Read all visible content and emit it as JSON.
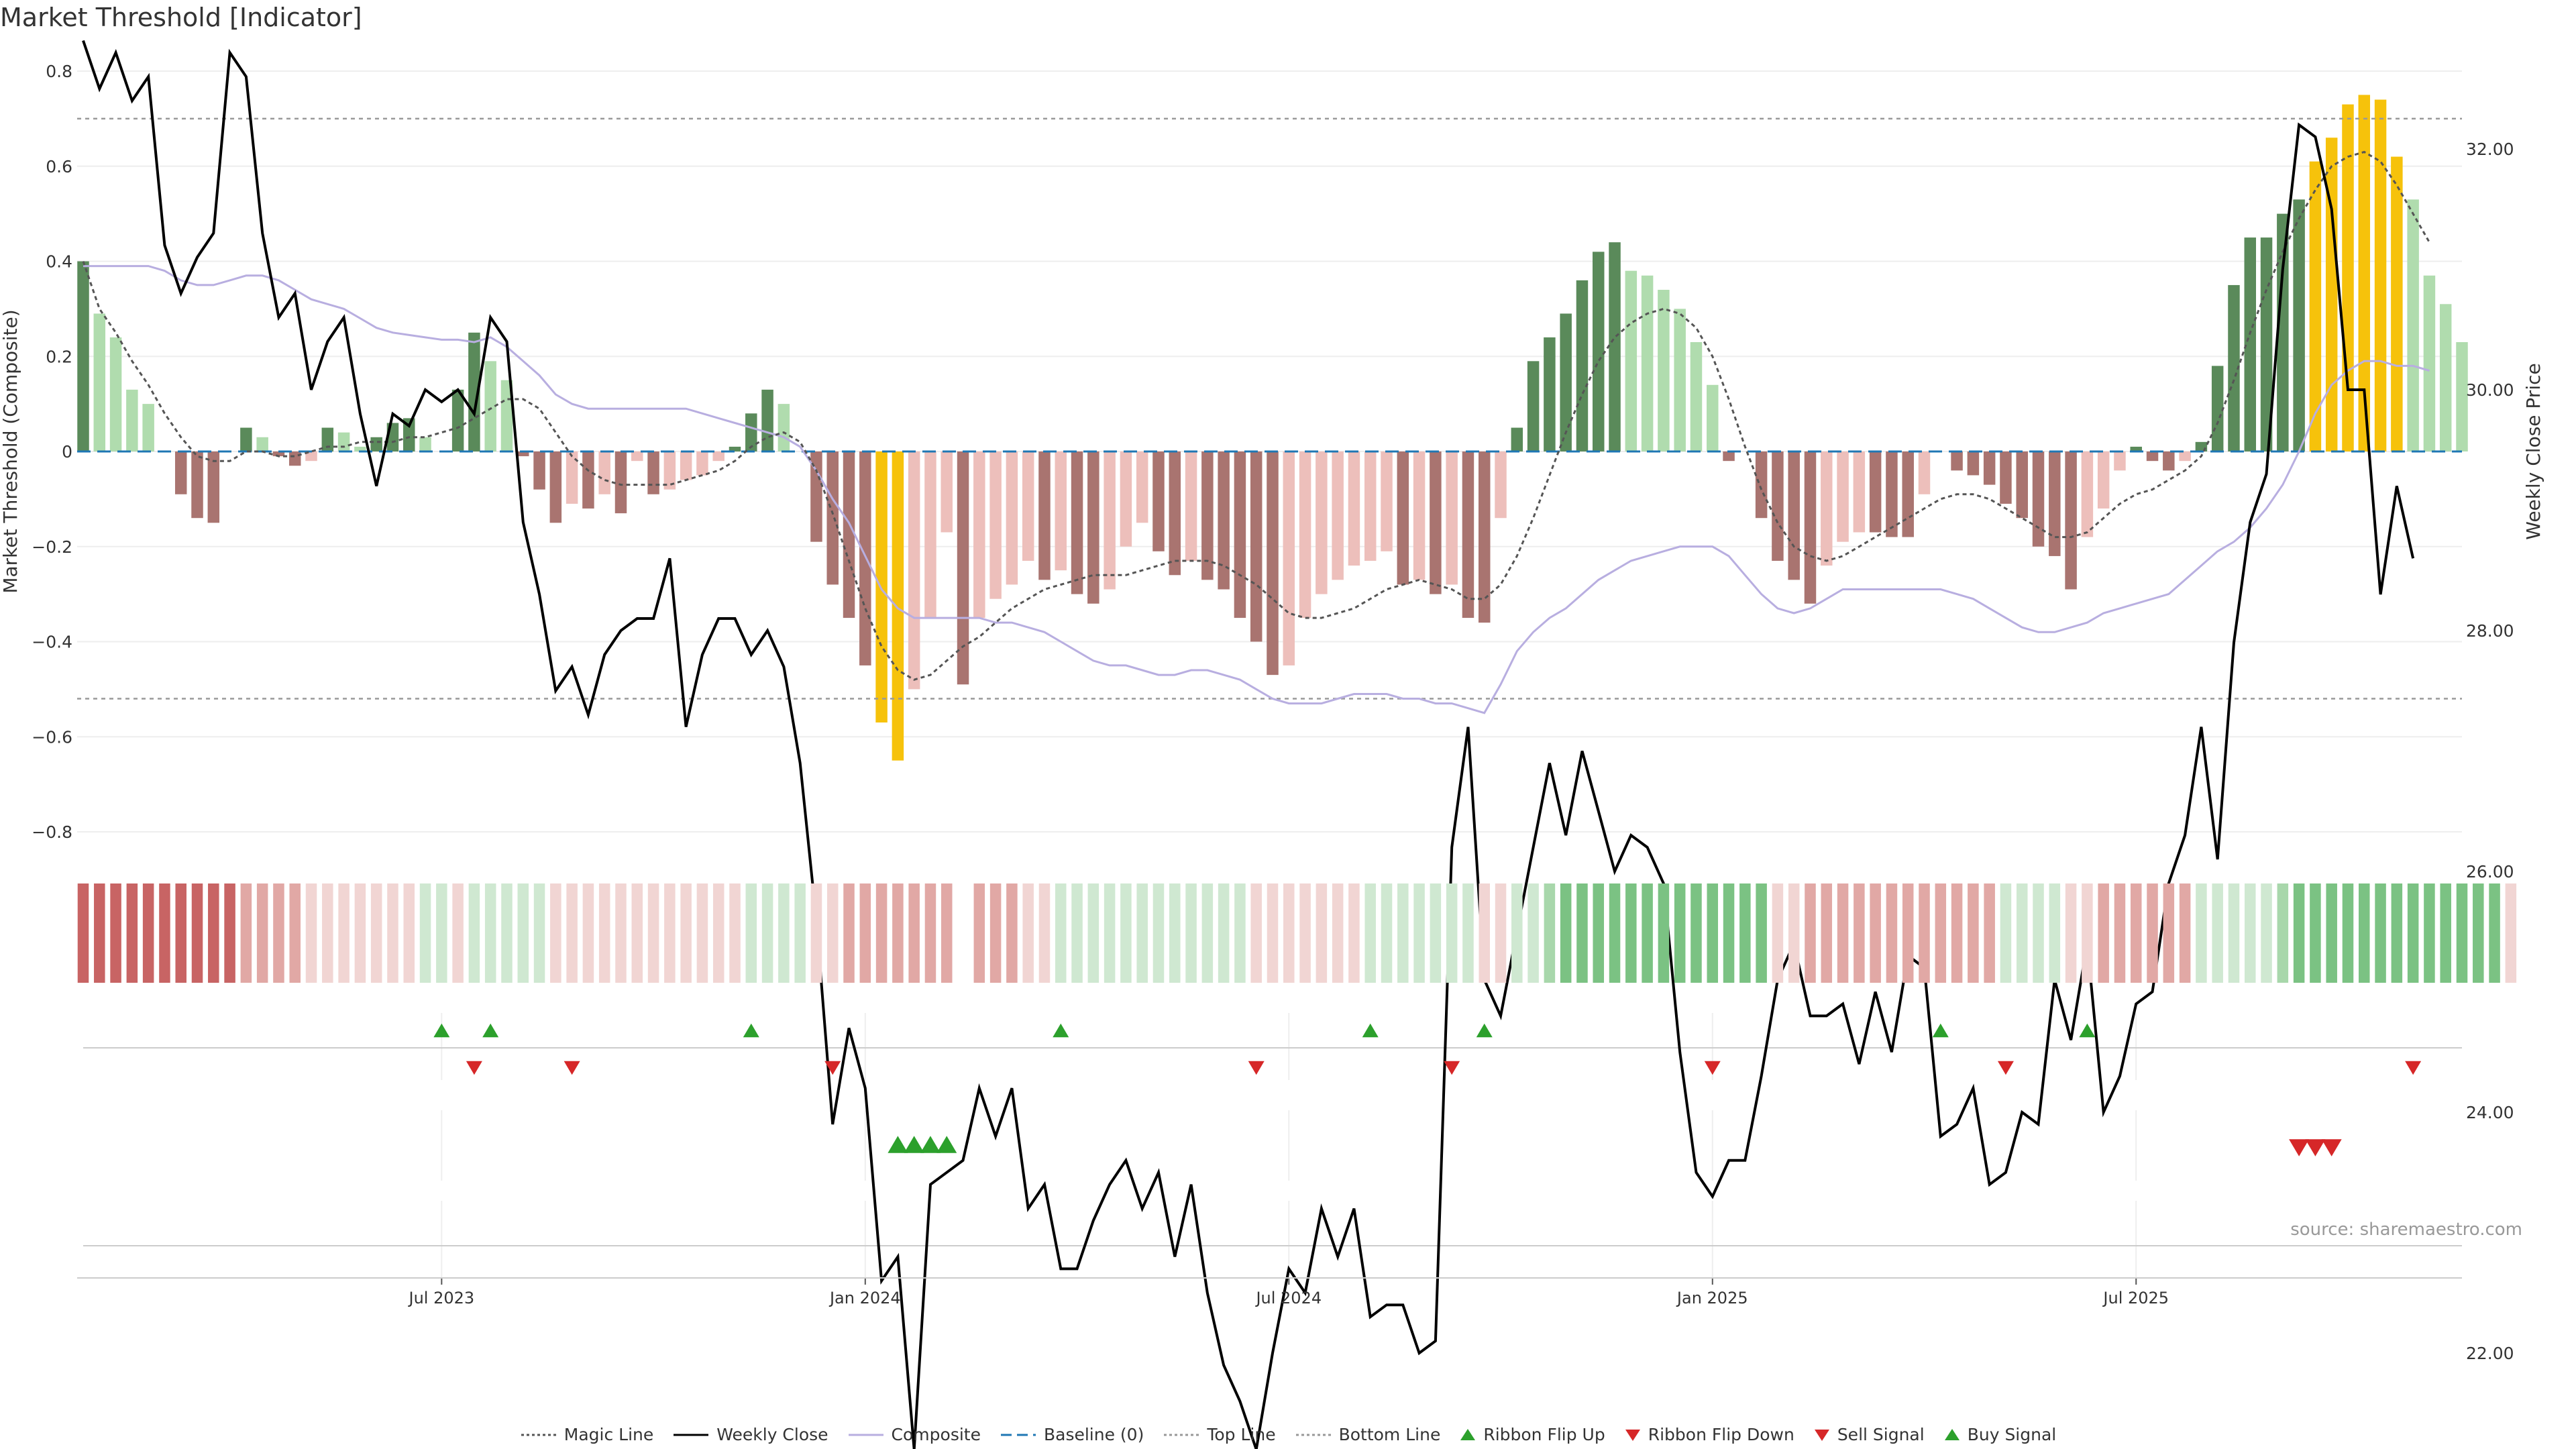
{
  "title": "Market Threshold [Indicator]",
  "source": "source: sharemaestro.com",
  "legend": [
    {
      "label": "Magic Line",
      "icon": "dotted-line",
      "color": "#555555"
    },
    {
      "label": "Weekly Close",
      "icon": "solid-line",
      "color": "#000000"
    },
    {
      "label": "Composite",
      "icon": "solid-line",
      "color": "#b8aee0"
    },
    {
      "label": "Baseline (0)",
      "icon": "dashed-line",
      "color": "#1f77b4"
    },
    {
      "label": "Top Line",
      "icon": "dotted-line",
      "color": "#999999"
    },
    {
      "label": "Bottom Line",
      "icon": "dotted-line",
      "color": "#999999"
    },
    {
      "label": "Ribbon Flip Up",
      "icon": "triangle-up",
      "color": "#2ca02c"
    },
    {
      "label": "Ribbon Flip Down",
      "icon": "triangle-down",
      "color": "#d62728"
    },
    {
      "label": "Sell Signal",
      "icon": "triangle-down",
      "color": "#d62728"
    },
    {
      "label": "Buy Signal",
      "icon": "triangle-up",
      "color": "#2ca02c"
    }
  ],
  "colors": {
    "bar_strong_pos": "#5a8a5a",
    "bar_weak_pos": "#b0dcae",
    "bar_strong_neg": "#a97470",
    "bar_weak_neg": "#edbfbb",
    "bar_extreme": "#f6c20b",
    "ribbon_red_strong": "#c86464",
    "ribbon_red_mid": "#e1a8a5",
    "ribbon_red_weak": "#f1d5d3",
    "ribbon_green_weak": "#cfe8d1",
    "ribbon_green_mid": "#a8d7ab",
    "ribbon_green_strong": "#7bc283"
  },
  "chart_data": {
    "type": "bar",
    "title": "Market Threshold [Indicator]",
    "ylabel_left": "Market Threshold (Composite)",
    "ylabel_right": "Weekly Close Price",
    "ylim_left": [
      -0.8,
      0.8
    ],
    "ylim_right": [
      21.0,
      33.5
    ],
    "left_ticks": [
      "0.8",
      "0.6",
      "0.4",
      "0.2",
      "0",
      "−0.2",
      "−0.4",
      "−0.6",
      "−0.8"
    ],
    "right_ticks": [
      "32.00",
      "30.00",
      "28.00",
      "26.00",
      "24.00",
      "22.00"
    ],
    "x_tick_labels": [
      "Jul 2023",
      "Jan 2024",
      "Jul 2024",
      "Jan 2025",
      "Jul 2025"
    ],
    "x_tick_weeks": [
      22,
      48,
      74,
      100,
      126
    ],
    "top_line": 0.7,
    "bottom_line": -0.52,
    "composite_bars": [
      0.4,
      0.29,
      0.24,
      0.13,
      0.1,
      0,
      -0.09,
      -0.14,
      -0.15,
      0,
      0.05,
      0.03,
      -0.01,
      -0.03,
      -0.02,
      0.05,
      0.04,
      0.01,
      0.03,
      0.06,
      0.07,
      0.03,
      0,
      0.13,
      0.25,
      0.19,
      0.15,
      -0.01,
      -0.08,
      -0.15,
      -0.11,
      -0.12,
      -0.09,
      -0.13,
      -0.02,
      -0.09,
      -0.08,
      -0.06,
      -0.05,
      -0.02,
      0.01,
      0.08,
      0.13,
      0.1,
      0,
      -0.19,
      -0.28,
      -0.35,
      -0.45,
      -0.57,
      -0.65,
      -0.5,
      -0.35,
      -0.17,
      -0.49,
      -0.35,
      -0.31,
      -0.28,
      -0.23,
      -0.27,
      -0.25,
      -0.3,
      -0.32,
      -0.29,
      -0.2,
      -0.15,
      -0.21,
      -0.26,
      -0.23,
      -0.27,
      -0.29,
      -0.35,
      -0.4,
      -0.47,
      -0.45,
      -0.35,
      -0.3,
      -0.27,
      -0.24,
      -0.23,
      -0.21,
      -0.28,
      -0.27,
      -0.3,
      -0.28,
      -0.35,
      -0.36,
      -0.14,
      0.05,
      0.19,
      0.24,
      0.29,
      0.36,
      0.42,
      0.44,
      0.38,
      0.37,
      0.34,
      0.3,
      0.23,
      0.14,
      -0.02,
      0,
      -0.14,
      -0.23,
      -0.27,
      -0.32,
      -0.24,
      -0.19,
      -0.17,
      -0.17,
      -0.18,
      -0.18,
      -0.09,
      0,
      -0.04,
      -0.05,
      -0.07,
      -0.11,
      -0.14,
      -0.2,
      -0.22,
      -0.29,
      -0.18,
      -0.12,
      -0.04,
      0.01,
      -0.02,
      -0.04,
      -0.02,
      0.02,
      0.18,
      0.35,
      0.45,
      0.45,
      0.5,
      0.53,
      0.61,
      0.66,
      0.73,
      0.75,
      0.74,
      0.62,
      0.53,
      0.37,
      0.31,
      0.23
    ],
    "weekly_close": [
      32.9,
      32.5,
      32.8,
      32.4,
      32.6,
      31.2,
      30.8,
      31.1,
      31.3,
      32.8,
      32.6,
      31.3,
      30.6,
      30.8,
      30.0,
      30.4,
      30.6,
      29.8,
      29.2,
      29.8,
      29.7,
      30.0,
      29.9,
      30.0,
      29.8,
      30.6,
      30.4,
      28.9,
      28.3,
      27.5,
      27.7,
      27.3,
      27.8,
      28.0,
      28.1,
      28.1,
      28.6,
      27.2,
      27.8,
      28.1,
      28.1,
      27.8,
      28.0,
      27.7,
      26.9,
      25.6,
      23.9,
      24.7,
      24.2,
      22.6,
      22.8,
      21.2,
      23.4,
      23.5,
      23.6,
      24.2,
      23.8,
      24.2,
      23.2,
      23.4,
      22.7,
      22.7,
      23.1,
      23.4,
      23.6,
      23.2,
      23.5,
      22.8,
      23.4,
      22.5,
      21.9,
      21.6,
      21.2,
      22.0,
      22.7,
      22.5,
      23.2,
      22.8,
      23.2,
      22.3,
      22.4,
      22.4,
      22.0,
      22.1,
      26.2,
      27.2,
      25.1,
      24.8,
      25.5,
      26.2,
      26.9,
      26.3,
      27.0,
      26.5,
      26.0,
      26.3,
      26.2,
      25.9,
      24.5,
      23.5,
      23.3,
      23.6,
      23.6,
      24.3,
      25.1,
      25.4,
      24.8,
      24.8,
      24.9,
      24.4,
      25.0,
      24.5,
      25.3,
      25.2,
      23.8,
      23.9,
      24.2,
      23.4,
      23.5,
      24.0,
      23.9,
      25.1,
      24.6,
      25.4,
      24.0,
      24.3,
      24.9,
      25.0,
      25.9,
      26.3,
      27.2,
      26.1,
      27.9,
      28.9,
      29.3,
      31.0,
      32.2,
      32.1,
      31.5,
      30.0,
      30.0,
      28.3,
      29.2,
      28.6
    ],
    "magic_line": [
      0.4,
      0.3,
      0.25,
      0.19,
      0.14,
      0.08,
      0.03,
      -0.01,
      -0.02,
      -0.02,
      0.0,
      0.0,
      -0.01,
      -0.01,
      0.0,
      0.01,
      0.01,
      0.02,
      0.02,
      0.02,
      0.03,
      0.03,
      0.04,
      0.05,
      0.07,
      0.09,
      0.11,
      0.11,
      0.09,
      0.04,
      -0.01,
      -0.04,
      -0.06,
      -0.07,
      -0.07,
      -0.07,
      -0.07,
      -0.06,
      -0.05,
      -0.04,
      -0.02,
      0.01,
      0.03,
      0.04,
      0.02,
      -0.04,
      -0.13,
      -0.23,
      -0.33,
      -0.41,
      -0.46,
      -0.48,
      -0.47,
      -0.44,
      -0.41,
      -0.39,
      -0.36,
      -0.33,
      -0.31,
      -0.29,
      -0.28,
      -0.27,
      -0.26,
      -0.26,
      -0.26,
      -0.25,
      -0.24,
      -0.23,
      -0.23,
      -0.23,
      -0.24,
      -0.26,
      -0.28,
      -0.31,
      -0.34,
      -0.35,
      -0.35,
      -0.34,
      -0.33,
      -0.31,
      -0.29,
      -0.28,
      -0.27,
      -0.28,
      -0.29,
      -0.31,
      -0.31,
      -0.28,
      -0.22,
      -0.14,
      -0.05,
      0.04,
      0.12,
      0.19,
      0.24,
      0.27,
      0.29,
      0.3,
      0.29,
      0.26,
      0.2,
      0.11,
      0.01,
      -0.08,
      -0.15,
      -0.2,
      -0.22,
      -0.23,
      -0.22,
      -0.2,
      -0.18,
      -0.16,
      -0.14,
      -0.12,
      -0.1,
      -0.09,
      -0.09,
      -0.1,
      -0.12,
      -0.14,
      -0.16,
      -0.18,
      -0.18,
      -0.17,
      -0.14,
      -0.11,
      -0.09,
      -0.08,
      -0.06,
      -0.04,
      -0.01,
      0.06,
      0.15,
      0.25,
      0.34,
      0.42,
      0.49,
      0.55,
      0.6,
      0.62,
      0.63,
      0.61,
      0.56,
      0.5,
      0.44
    ],
    "composite_line": [
      0.39,
      0.39,
      0.39,
      0.39,
      0.39,
      0.38,
      0.36,
      0.35,
      0.35,
      0.36,
      0.37,
      0.37,
      0.36,
      0.34,
      0.32,
      0.31,
      0.3,
      0.28,
      0.26,
      0.25,
      0.245,
      0.24,
      0.235,
      0.235,
      0.23,
      0.24,
      0.22,
      0.19,
      0.16,
      0.12,
      0.1,
      0.09,
      0.09,
      0.09,
      0.09,
      0.09,
      0.09,
      0.09,
      0.08,
      0.07,
      0.06,
      0.05,
      0.04,
      0.03,
      0.01,
      -0.04,
      -0.1,
      -0.15,
      -0.22,
      -0.29,
      -0.33,
      -0.35,
      -0.35,
      -0.35,
      -0.35,
      -0.35,
      -0.36,
      -0.36,
      -0.37,
      -0.38,
      -0.4,
      -0.42,
      -0.44,
      -0.45,
      -0.45,
      -0.46,
      -0.47,
      -0.47,
      -0.46,
      -0.46,
      -0.47,
      -0.48,
      -0.5,
      -0.52,
      -0.53,
      -0.53,
      -0.53,
      -0.52,
      -0.51,
      -0.51,
      -0.51,
      -0.52,
      -0.52,
      -0.53,
      -0.53,
      -0.54,
      -0.55,
      -0.49,
      -0.42,
      -0.38,
      -0.35,
      -0.33,
      -0.3,
      -0.27,
      -0.25,
      -0.23,
      -0.22,
      -0.21,
      -0.2,
      -0.2,
      -0.2,
      -0.22,
      -0.26,
      -0.3,
      -0.33,
      -0.34,
      -0.33,
      -0.31,
      -0.29,
      -0.29,
      -0.29,
      -0.29,
      -0.29,
      -0.29,
      -0.29,
      -0.3,
      -0.31,
      -0.33,
      -0.35,
      -0.37,
      -0.38,
      -0.38,
      -0.37,
      -0.36,
      -0.34,
      -0.33,
      -0.32,
      -0.31,
      -0.3,
      -0.27,
      -0.24,
      -0.21,
      -0.19,
      -0.16,
      -0.12,
      -0.07,
      0.0,
      0.08,
      0.14,
      0.17,
      0.19,
      0.19,
      0.18,
      0.18,
      0.17
    ],
    "ribbon_levels": [
      -3,
      -3,
      -3,
      -3,
      -3,
      -3,
      -3,
      -3,
      -3,
      -3,
      -2,
      -2,
      -2,
      -2,
      -1,
      -1,
      -1,
      -1,
      -1,
      -1,
      -1,
      1,
      1,
      -1,
      1,
      1,
      1,
      1,
      1,
      -1,
      -1,
      -1,
      -1,
      -1,
      -1,
      -1,
      -1,
      -1,
      -1,
      -1,
      -1,
      1,
      1,
      1,
      1,
      -1,
      -1,
      -2,
      -2,
      -2,
      -2,
      -2,
      -2,
      -2,
      null,
      -2,
      -2,
      -2,
      -1,
      -1,
      1,
      1,
      1,
      1,
      1,
      1,
      1,
      1,
      1,
      1,
      1,
      1,
      -1,
      -1,
      -1,
      -1,
      -1,
      -1,
      -1,
      1,
      1,
      1,
      1,
      1,
      1,
      1,
      -1,
      -1,
      1,
      1,
      2,
      2,
      2,
      2,
      2,
      2,
      2,
      2,
      2,
      2,
      2,
      2,
      2,
      2,
      -1,
      -1,
      -2,
      -2,
      -2,
      -2,
      -2,
      -2,
      -2,
      -2,
      -2,
      -2,
      -2,
      -2,
      1,
      1,
      1,
      1,
      -1,
      -1,
      -2,
      -2,
      -2,
      -2,
      -2,
      -2,
      1,
      1,
      1,
      1,
      1,
      2,
      2,
      2,
      2,
      2,
      2,
      2,
      2,
      2,
      2,
      2,
      2,
      2,
      2,
      -1
    ],
    "ribbon_flip_up_weeks": [
      22,
      25,
      41,
      60,
      79,
      86,
      114,
      123
    ],
    "ribbon_flip_down_weeks": [
      24,
      30,
      46,
      72,
      84,
      100,
      118,
      143
    ],
    "buy_signal_weeks": [
      50,
      51,
      52,
      53
    ],
    "sell_signal_weeks": [
      136,
      137,
      138
    ]
  }
}
